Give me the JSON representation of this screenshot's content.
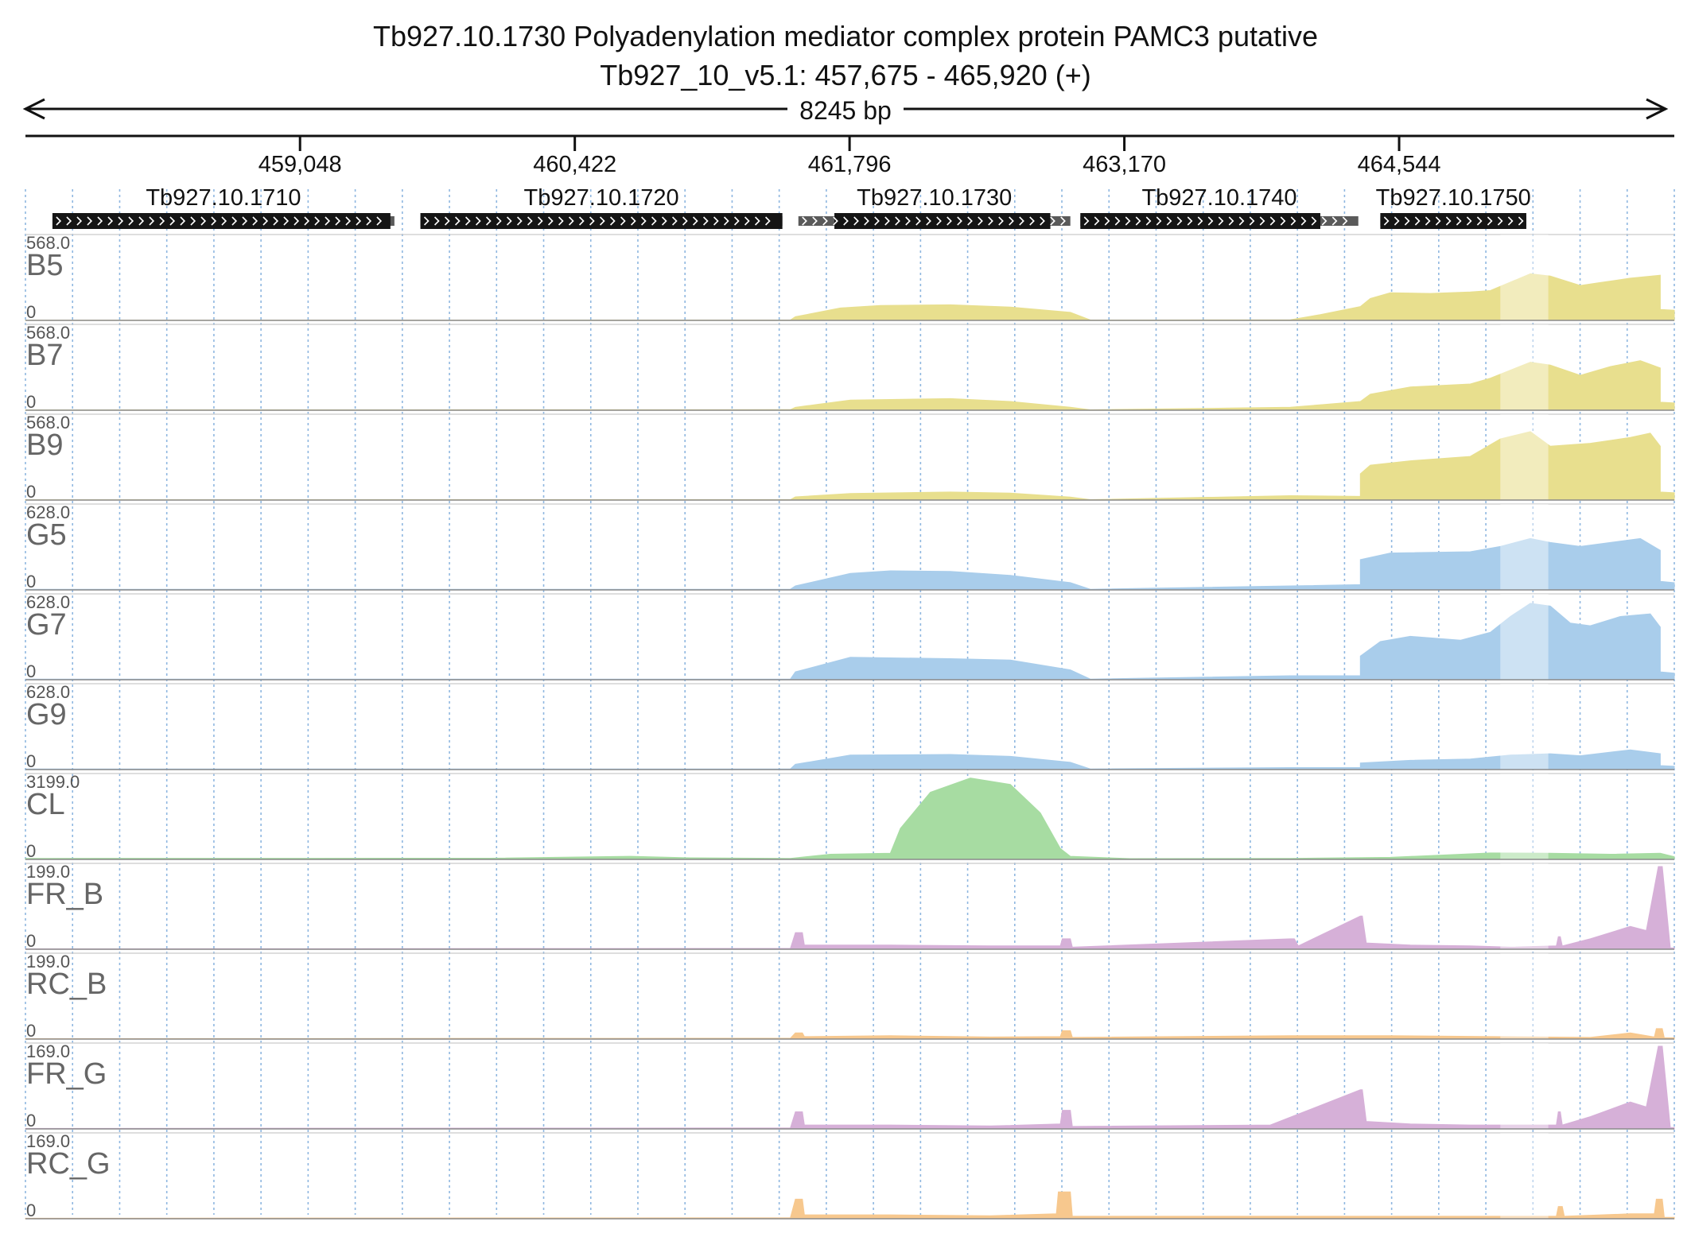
{
  "header": {
    "title": "Tb927.10.1730  Polyadenylation mediator complex protein PAMC3  putative",
    "subtitle": "Tb927_10_v5.1: 457,675 - 465,920 (+)",
    "span_label": "8245 bp"
  },
  "ruler": {
    "start": 457675,
    "end": 465920,
    "ticks": [
      {
        "pos": 459048,
        "label": "459,048"
      },
      {
        "pos": 460422,
        "label": "460,422"
      },
      {
        "pos": 461796,
        "label": "461,796"
      },
      {
        "pos": 463170,
        "label": "463,170"
      },
      {
        "pos": 464544,
        "label": "464,544"
      }
    ]
  },
  "genes": [
    {
      "id": "Tb927.10.1710",
      "start": 457810,
      "end": 459520,
      "cds_start": 457810,
      "cds_end": 459500
    },
    {
      "id": "Tb927.10.1720",
      "start": 459650,
      "end": 461460,
      "cds_start": 459650,
      "cds_end": 461460
    },
    {
      "id": "Tb927.10.1730",
      "start": 461540,
      "end": 462900,
      "cds_start": 461720,
      "cds_end": 462800
    },
    {
      "id": "Tb927.10.1740",
      "start": 462950,
      "end": 464340,
      "cds_start": 462950,
      "cds_end": 464150
    },
    {
      "id": "Tb927.10.1750",
      "start": 464450,
      "end": 465180,
      "cds_start": 464450,
      "cds_end": 465180
    }
  ],
  "highlight": {
    "start": 465050,
    "end": 465290
  },
  "colors": {
    "blood_stream": "#e8df8e",
    "procyclic": "#a9cdeb",
    "cell_line": "#a7dca2",
    "forward": "#d6b0d8",
    "reverse": "#f7c88e",
    "axis": "#333333",
    "grid": "#8fb7e0",
    "gene": "#151515",
    "utr": "#5a5a5a"
  },
  "tracks": [
    {
      "name": "B5",
      "max": "568.0",
      "min": "0",
      "color_key": "blood_stream"
    },
    {
      "name": "B7",
      "max": "568.0",
      "min": "0",
      "color_key": "blood_stream"
    },
    {
      "name": "B9",
      "max": "568.0",
      "min": "0",
      "color_key": "blood_stream"
    },
    {
      "name": "G5",
      "max": "628.0",
      "min": "0",
      "color_key": "procyclic"
    },
    {
      "name": "G7",
      "max": "628.0",
      "min": "0",
      "color_key": "procyclic"
    },
    {
      "name": "G9",
      "max": "628.0",
      "min": "0",
      "color_key": "procyclic"
    },
    {
      "name": "CL",
      "max": "3199.0",
      "min": "0",
      "color_key": "cell_line"
    },
    {
      "name": "FR_B",
      "max": "199.0",
      "min": "0",
      "color_key": "forward"
    },
    {
      "name": "RC_B",
      "max": "199.0",
      "min": "0",
      "color_key": "reverse"
    },
    {
      "name": "FR_G",
      "max": "169.0",
      "min": "0",
      "color_key": "forward"
    },
    {
      "name": "RC_G",
      "max": "169.0",
      "min": "0",
      "color_key": "reverse"
    }
  ],
  "chart_data": {
    "type": "area",
    "x_unit": "bp (Tb927_10_v5.1)",
    "xlim": [
      457675,
      465920
    ],
    "series": [
      {
        "name": "B5",
        "ylim": [
          0,
          568
        ],
        "x": [
          457675,
          459000,
          461500,
          461525,
          461750,
          461950,
          462300,
          462600,
          462900,
          463000,
          463050,
          464000,
          464150,
          464350,
          464400,
          464500,
          464700,
          464900,
          465000,
          465200,
          465300,
          465450,
          465550,
          465700,
          465850,
          465850,
          465920
        ],
        "values": [
          1,
          1,
          2,
          25,
          85,
          102,
          107,
          92,
          55,
          3,
          2,
          4,
          40,
          95,
          150,
          190,
          185,
          195,
          205,
          320,
          305,
          240,
          260,
          290,
          310,
          75,
          70
        ]
      },
      {
        "name": "B7",
        "ylim": [
          0,
          568
        ],
        "x": [
          457675,
          461500,
          461525,
          461800,
          462300,
          462600,
          462900,
          463000,
          463700,
          464000,
          464350,
          464400,
          464600,
          464900,
          465000,
          465200,
          465300,
          465450,
          465600,
          465750,
          465850,
          465850,
          465920
        ],
        "values": [
          2,
          4,
          20,
          70,
          80,
          60,
          20,
          3,
          15,
          20,
          60,
          110,
          160,
          180,
          220,
          330,
          310,
          240,
          300,
          340,
          290,
          55,
          50
        ]
      },
      {
        "name": "B9",
        "ylim": [
          0,
          568
        ],
        "x": [
          457675,
          461500,
          461525,
          461800,
          462300,
          462600,
          462900,
          463000,
          464000,
          464350,
          464350,
          464400,
          464600,
          464900,
          465050,
          465200,
          465300,
          465500,
          465700,
          465800,
          465850,
          465850,
          465920
        ],
        "values": [
          2,
          3,
          22,
          45,
          55,
          48,
          20,
          3,
          30,
          25,
          180,
          240,
          270,
          300,
          420,
          470,
          370,
          390,
          430,
          460,
          370,
          55,
          50
        ]
      },
      {
        "name": "G5",
        "ylim": [
          0,
          628
        ],
        "x": [
          457675,
          461500,
          461525,
          461800,
          462000,
          462300,
          462600,
          462900,
          463000,
          464000,
          464350,
          464350,
          464500,
          464900,
          465050,
          465200,
          465300,
          465450,
          465600,
          465750,
          465850,
          465850,
          465920
        ],
        "values": [
          5,
          5,
          30,
          125,
          145,
          140,
          110,
          55,
          5,
          30,
          40,
          230,
          280,
          290,
          330,
          390,
          360,
          330,
          360,
          390,
          300,
          65,
          55
        ]
      },
      {
        "name": "G7",
        "ylim": [
          0,
          628
        ],
        "x": [
          457675,
          461500,
          461525,
          461800,
          462300,
          462600,
          462900,
          463000,
          464000,
          464350,
          464350,
          464450,
          464600,
          464850,
          465000,
          465100,
          465200,
          465300,
          465400,
          465500,
          465650,
          465800,
          465850,
          465850,
          465920
        ],
        "values": [
          5,
          5,
          60,
          170,
          160,
          150,
          75,
          5,
          30,
          30,
          180,
          290,
          330,
          300,
          360,
          480,
          580,
          560,
          430,
          410,
          480,
          500,
          400,
          60,
          50
        ]
      },
      {
        "name": "G9",
        "ylim": [
          0,
          628
        ],
        "x": [
          457675,
          461500,
          461525,
          461800,
          462300,
          462600,
          462900,
          463000,
          464000,
          464350,
          464350,
          464600,
          464900,
          465100,
          465300,
          465450,
          465700,
          465850,
          465850,
          465920
        ],
        "values": [
          5,
          5,
          40,
          110,
          115,
          100,
          55,
          5,
          15,
          15,
          50,
          70,
          80,
          110,
          120,
          105,
          150,
          120,
          30,
          25
        ]
      },
      {
        "name": "CL",
        "ylim": [
          0,
          3199
        ],
        "x": [
          457675,
          460000,
          460700,
          461000,
          461500,
          461700,
          462000,
          462050,
          462200,
          462400,
          462600,
          462750,
          462850,
          462900,
          463200,
          464000,
          464500,
          465000,
          465300,
          465600,
          465850,
          465920
        ],
        "values": [
          40,
          45,
          120,
          60,
          40,
          200,
          240,
          1200,
          2600,
          3150,
          2900,
          1800,
          420,
          120,
          30,
          40,
          80,
          250,
          240,
          200,
          240,
          100
        ]
      },
      {
        "name": "FR_B",
        "ylim": [
          0,
          199
        ],
        "x": [
          457675,
          461500,
          461525,
          461560,
          461570,
          462000,
          462500,
          462850,
          462860,
          462900,
          462910,
          464000,
          464020,
          464040,
          464350,
          464360,
          464380,
          464390,
          464600,
          464900,
          465100,
          465330,
          465340,
          465350,
          465360,
          465500,
          465700,
          465780,
          465840,
          465860,
          465900,
          465920
        ],
        "values": [
          1,
          2,
          40,
          40,
          10,
          10,
          8,
          8,
          25,
          25,
          5,
          25,
          25,
          8,
          80,
          80,
          15,
          15,
          10,
          8,
          5,
          8,
          30,
          30,
          8,
          25,
          55,
          45,
          199,
          199,
          3,
          3
        ]
      },
      {
        "name": "RC_B",
        "ylim": [
          0,
          199
        ],
        "x": [
          457675,
          461500,
          461525,
          461560,
          461570,
          462000,
          462500,
          462850,
          462860,
          462900,
          462910,
          464000,
          464500,
          465500,
          465700,
          465820,
          465830,
          465860,
          465870,
          465920
        ],
        "values": [
          1,
          2,
          15,
          15,
          6,
          8,
          5,
          6,
          20,
          20,
          4,
          8,
          8,
          4,
          15,
          5,
          25,
          25,
          3,
          3
        ]
      },
      {
        "name": "FR_G",
        "ylim": [
          0,
          169
        ],
        "x": [
          457675,
          461500,
          461525,
          461560,
          461570,
          462000,
          462500,
          462850,
          462860,
          462900,
          462910,
          463900,
          464350,
          464360,
          464380,
          464390,
          464600,
          464900,
          465330,
          465340,
          465350,
          465360,
          465500,
          465700,
          465780,
          465840,
          465860,
          465900,
          465920
        ],
        "values": [
          1,
          2,
          35,
          35,
          8,
          8,
          6,
          10,
          38,
          38,
          5,
          8,
          80,
          80,
          15,
          15,
          10,
          8,
          8,
          35,
          35,
          8,
          25,
          55,
          45,
          169,
          169,
          3,
          3
        ]
      },
      {
        "name": "RC_G",
        "ylim": [
          0,
          169
        ],
        "x": [
          457675,
          461500,
          461525,
          461560,
          461570,
          462000,
          462500,
          462830,
          462840,
          462900,
          462910,
          464000,
          465330,
          465340,
          465360,
          465370,
          465700,
          465820,
          465830,
          465860,
          465870,
          465920
        ],
        "values": [
          1,
          2,
          40,
          40,
          8,
          8,
          6,
          10,
          55,
          55,
          5,
          5,
          5,
          25,
          25,
          5,
          10,
          10,
          40,
          40,
          3,
          3
        ]
      }
    ]
  }
}
